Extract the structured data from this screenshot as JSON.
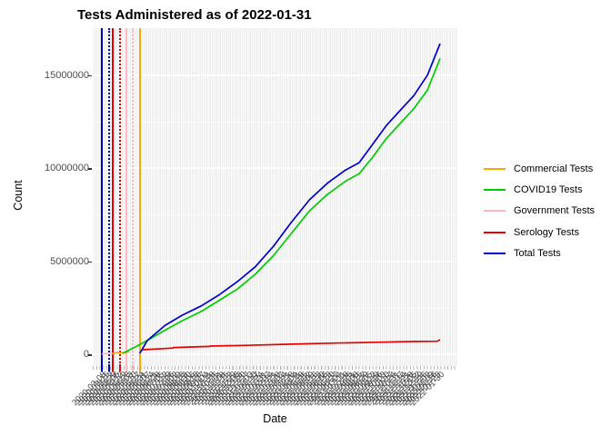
{
  "title": "Tests Administered as of 2022-01-31",
  "y_axis": {
    "label": "Count",
    "ticks": [
      0,
      5000000,
      10000000,
      15000000
    ],
    "minor_ticks": [
      2500000,
      7500000,
      12500000
    ]
  },
  "x_axis": {
    "label": "Date",
    "tick_start": "2020-03-08",
    "tick_end": "2022-01-31",
    "tick_interval_days": 7
  },
  "legend": {
    "items": [
      {
        "label": "Commercial Tests",
        "color": "#FFA500"
      },
      {
        "label": "COVID19 Tests",
        "color": "#00CC00"
      },
      {
        "label": "Government Tests",
        "color": "#FFB6C1"
      },
      {
        "label": "Serology Tests",
        "color": "#E60000"
      },
      {
        "label": "Total Tests",
        "color": "#0000CD"
      }
    ]
  },
  "chart_data": {
    "type": "line",
    "title": "Tests Administered as of 2022-01-31",
    "xlabel": "Date",
    "ylabel": "Count",
    "x_range": [
      "2020-03-08",
      "2022-01-31"
    ],
    "ylim": [
      0,
      17500000
    ],
    "grid": "dense vertical white stripes on gray panel, white horizontal majors/minors",
    "legend_position": "right",
    "series": [
      {
        "name": "Commercial Tests",
        "color": "#FFA500",
        "points": [
          [
            "2020-03-27",
            20000
          ],
          [
            "2020-04-10",
            90000
          ],
          [
            "2020-04-18",
            70000
          ],
          [
            "2020-05-03",
            130000
          ]
        ]
      },
      {
        "name": "COVID19 Tests",
        "color": "#00CC00",
        "points": [
          [
            "2020-04-20",
            50000
          ],
          [
            "2020-05-20",
            450000
          ],
          [
            "2020-06-10",
            750000
          ],
          [
            "2020-07-16",
            1300000
          ],
          [
            "2020-08-20",
            1800000
          ],
          [
            "2020-09-28",
            2300000
          ],
          [
            "2020-11-04",
            2900000
          ],
          [
            "2020-12-11",
            3500000
          ],
          [
            "2021-01-17",
            4300000
          ],
          [
            "2021-02-23",
            5300000
          ],
          [
            "2021-04-01",
            6500000
          ],
          [
            "2021-05-08",
            7700000
          ],
          [
            "2021-06-14",
            8600000
          ],
          [
            "2021-07-21",
            9300000
          ],
          [
            "2021-08-18",
            9700000
          ],
          [
            "2021-09-15",
            10600000
          ],
          [
            "2021-10-13",
            11600000
          ],
          [
            "2021-11-10",
            12400000
          ],
          [
            "2021-12-08",
            13200000
          ],
          [
            "2022-01-05",
            14200000
          ],
          [
            "2022-01-31",
            15900000
          ]
        ]
      },
      {
        "name": "Government Tests",
        "color": "#FFB6C1",
        "points": [
          [
            "2020-03-08",
            20000
          ],
          [
            "2020-03-30",
            30000
          ]
        ]
      },
      {
        "name": "Serology Tests",
        "color": "#E60000",
        "points": [
          [
            "2020-05-28",
            240000
          ],
          [
            "2020-08-01",
            330000
          ],
          [
            "2020-08-02",
            360000
          ],
          [
            "2020-10-15",
            420000
          ],
          [
            "2020-10-16",
            440000
          ],
          [
            "2021-01-01",
            480000
          ],
          [
            "2021-04-01",
            540000
          ],
          [
            "2021-07-01",
            600000
          ],
          [
            "2021-10-01",
            650000
          ],
          [
            "2021-12-15",
            690000
          ],
          [
            "2022-01-25",
            700000
          ],
          [
            "2022-01-31",
            780000
          ]
        ]
      },
      {
        "name": "Total Tests",
        "color": "#0000CD",
        "points": [
          [
            "2020-05-25",
            50000
          ],
          [
            "2020-06-09",
            730000
          ],
          [
            "2020-07-16",
            1560000
          ],
          [
            "2020-08-20",
            2100000
          ],
          [
            "2020-09-28",
            2600000
          ],
          [
            "2020-11-04",
            3200000
          ],
          [
            "2020-12-11",
            3900000
          ],
          [
            "2021-01-17",
            4700000
          ],
          [
            "2021-02-23",
            5800000
          ],
          [
            "2021-04-01",
            7100000
          ],
          [
            "2021-05-08",
            8300000
          ],
          [
            "2021-06-14",
            9200000
          ],
          [
            "2021-07-21",
            9900000
          ],
          [
            "2021-08-18",
            10300000
          ],
          [
            "2021-09-15",
            11300000
          ],
          [
            "2021-10-13",
            12300000
          ],
          [
            "2021-11-10",
            13100000
          ],
          [
            "2021-12-08",
            13900000
          ],
          [
            "2022-01-05",
            15000000
          ],
          [
            "2022-01-31",
            16700000
          ]
        ]
      }
    ],
    "vlines": [
      {
        "date": "2020-03-08",
        "color": "#0000CD",
        "style": "solid"
      },
      {
        "date": "2020-03-23",
        "color": "#0000CD",
        "style": "dotted"
      },
      {
        "date": "2020-03-30",
        "color": "#E60000",
        "style": "solid"
      },
      {
        "date": "2020-04-14",
        "color": "#E60000",
        "style": "dotted"
      },
      {
        "date": "2020-04-27",
        "color": "#FFB6C1",
        "style": "solid"
      },
      {
        "date": "2020-05-11",
        "color": "#FFB6C1",
        "style": "dotted"
      },
      {
        "date": "2020-05-25",
        "color": "#FFA500",
        "style": "solid"
      }
    ]
  }
}
